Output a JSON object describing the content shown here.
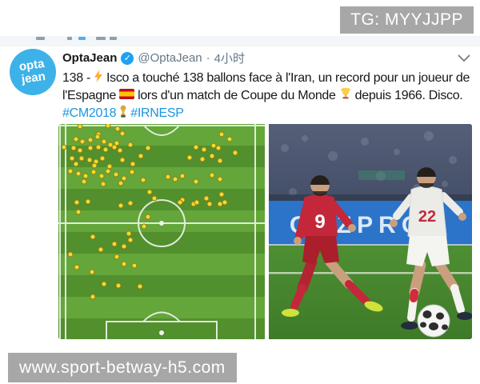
{
  "overlays": {
    "tg_badge": "TG: MYYJJPP",
    "site_badge": "www.sport-betway-h5.com",
    "badge_bg": "#a7a7a7"
  },
  "tweet": {
    "author": "OptaJean",
    "verified_mark": "✓",
    "handle": "@OptaJean",
    "dot": "·",
    "time": "4小时",
    "avatar": {
      "line1": "opta",
      "line2": "jean",
      "bg": "#3db2e8"
    },
    "body": {
      "t1a": "138 -",
      "t1b": "Isco a touché 138 ballons face à l'Iran, un record pour un joueur de",
      "t2a": "l'Espagne",
      "t2b": "lors d'un match de Coupe du Monde",
      "t2c": "depuis 1966. Disco.",
      "hashtag1": "#CM2018",
      "hashtag2": "#IRNESP"
    },
    "link_color": "#1b95e0"
  },
  "photo": {
    "iran_number": "9",
    "spain_number": "22",
    "ad_text": "GAZPROM"
  },
  "chart_data": {
    "type": "scatter",
    "subject": "touch map on vertical football pitch",
    "marker_color": "#eedc2f",
    "marker_edge": "#8f7d17",
    "coords": "percent of pitch image, x right, y down",
    "points_pct": [
      [
        10.5,
        1.1
      ],
      [
        24,
        0.6
      ],
      [
        28.7,
        2.4
      ],
      [
        31,
        4.3
      ],
      [
        19.5,
        5.0
      ],
      [
        8.5,
        7.1
      ],
      [
        11.6,
        8.2
      ],
      [
        15.5,
        7.4
      ],
      [
        18.8,
        5.9
      ],
      [
        22.1,
        8.2
      ],
      [
        25.2,
        9.8
      ],
      [
        28.3,
        8.9
      ],
      [
        2.8,
        10.8
      ],
      [
        7.4,
        11.2
      ],
      [
        10.5,
        12.4
      ],
      [
        15.5,
        11.2
      ],
      [
        19.4,
        10.8
      ],
      [
        22.9,
        11.9
      ],
      [
        27.1,
        10.8
      ],
      [
        29.8,
        12.4
      ],
      [
        34.9,
        9.5
      ],
      [
        43.4,
        11.2
      ],
      [
        79.1,
        4.8
      ],
      [
        82.9,
        7.1
      ],
      [
        66.7,
        10.8
      ],
      [
        70.5,
        11.9
      ],
      [
        75.2,
        10.0
      ],
      [
        77.5,
        11.3
      ],
      [
        6.6,
        16.0
      ],
      [
        11.2,
        16.0
      ],
      [
        8.5,
        18.6
      ],
      [
        15.1,
        16.7
      ],
      [
        18.2,
        17.5
      ],
      [
        21.3,
        16.0
      ],
      [
        17.4,
        19.4
      ],
      [
        24.8,
        19.8
      ],
      [
        31.0,
        16.7
      ],
      [
        36.0,
        18.6
      ],
      [
        39.9,
        14.9
      ],
      [
        63.6,
        15.6
      ],
      [
        69.8,
        16.4
      ],
      [
        74.4,
        14.9
      ],
      [
        78.3,
        17.1
      ],
      [
        85.7,
        13.4
      ],
      [
        5.8,
        21.9
      ],
      [
        9.7,
        23.0
      ],
      [
        13.2,
        24.2
      ],
      [
        17.1,
        22.3
      ],
      [
        20.9,
        24.2
      ],
      [
        24.0,
        21.9
      ],
      [
        27.9,
        23.4
      ],
      [
        31.8,
        25.3
      ],
      [
        35.7,
        22.3
      ],
      [
        12.4,
        26.8
      ],
      [
        21.7,
        27.9
      ],
      [
        30.2,
        27.5
      ],
      [
        41.1,
        26.0
      ],
      [
        53.1,
        24.5
      ],
      [
        56.6,
        25.8
      ],
      [
        60.1,
        24.2
      ],
      [
        66.7,
        26.8
      ],
      [
        74.4,
        23.8
      ],
      [
        78.3,
        25.7
      ],
      [
        44.2,
        31.6
      ],
      [
        46.5,
        34.6
      ],
      [
        60.1,
        35.3
      ],
      [
        65.5,
        37.2
      ],
      [
        71.7,
        34.6
      ],
      [
        73.3,
        37.2
      ],
      [
        79.1,
        32.7
      ],
      [
        80.6,
        36.4
      ],
      [
        8.9,
        36.4
      ],
      [
        14.3,
        36.1
      ],
      [
        30.2,
        37.9
      ],
      [
        34.9,
        36.8
      ],
      [
        58.9,
        36.4
      ],
      [
        67.1,
        36.4
      ],
      [
        78.3,
        37.2
      ],
      [
        9.7,
        40.9
      ],
      [
        43.4,
        43.1
      ],
      [
        41.5,
        47.6
      ],
      [
        34.1,
        50.9
      ],
      [
        16.7,
        52.4
      ],
      [
        34.9,
        53.9
      ],
      [
        27.1,
        55.8
      ],
      [
        31.8,
        56.9
      ],
      [
        20.5,
        58.4
      ],
      [
        5.8,
        60.6
      ],
      [
        28.3,
        61.7
      ],
      [
        31.8,
        65.1
      ],
      [
        8.9,
        66.4
      ],
      [
        16.3,
        68.8
      ],
      [
        36.8,
        65.8
      ],
      [
        22.1,
        74.3
      ],
      [
        29.1,
        75.1
      ],
      [
        39.5,
        75.5
      ],
      [
        16.7,
        80.3
      ]
    ]
  }
}
